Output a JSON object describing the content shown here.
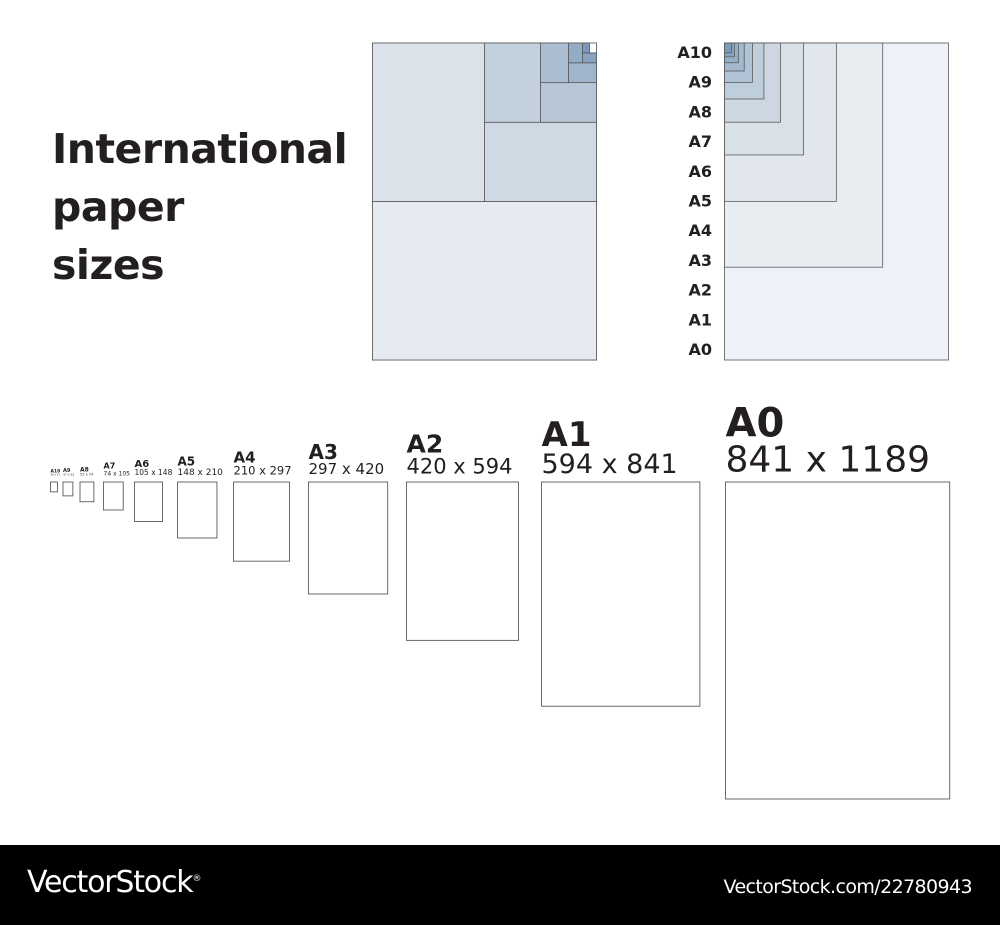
{
  "title": {
    "line1": "International",
    "line2": "paper",
    "line3": "sizes"
  },
  "colors": {
    "text": "#231f20",
    "outline": "#5a5a5a",
    "shades_light_to_dark": [
      "#e5ebf0",
      "#dbe2ea",
      "#cfd9e3",
      "#c3d0dd",
      "#b7c7d7",
      "#abbed1",
      "#9fb5cb",
      "#93acc5",
      "#87a3bf",
      "#7b9ab9",
      "#6f91b3"
    ],
    "footer_bg": "#000000",
    "footer_text": "#ffffff"
  },
  "sizes": [
    {
      "name": "A0",
      "dims": "841 x 1189",
      "width_mm": 841,
      "height_mm": 1189
    },
    {
      "name": "A1",
      "dims": "594 x 841",
      "width_mm": 594,
      "height_mm": 841
    },
    {
      "name": "A2",
      "dims": "420 x 594",
      "width_mm": 420,
      "height_mm": 594
    },
    {
      "name": "A3",
      "dims": "297 x 420",
      "width_mm": 297,
      "height_mm": 420
    },
    {
      "name": "A4",
      "dims": "210 x 297",
      "width_mm": 210,
      "height_mm": 297
    },
    {
      "name": "A5",
      "dims": "148 x 210",
      "width_mm": 148,
      "height_mm": 210
    },
    {
      "name": "A6",
      "dims": "105 x 148",
      "width_mm": 105,
      "height_mm": 148
    },
    {
      "name": "A7",
      "dims": "74 x 105",
      "width_mm": 74,
      "height_mm": 105
    },
    {
      "name": "A8",
      "dims": "52 x 74",
      "width_mm": 52,
      "height_mm": 74
    },
    {
      "name": "A9",
      "dims": "37 x 52",
      "width_mm": 37,
      "height_mm": 52
    },
    {
      "name": "A10",
      "dims": "26 x 37",
      "width_mm": 26,
      "height_mm": 37
    }
  ],
  "footer": {
    "brand": "VectorStock",
    "registered_mark": "®",
    "url": "VectorStock.com/22780943"
  }
}
